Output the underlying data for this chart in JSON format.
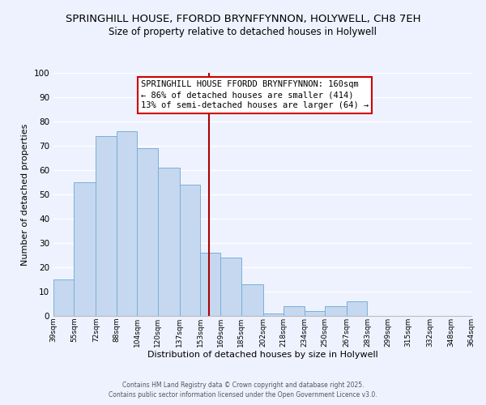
{
  "title": "SPRINGHILL HOUSE, FFORDD BRYNFFYNNON, HOLYWELL, CH8 7EH",
  "subtitle": "Size of property relative to detached houses in Holywell",
  "bar_left_edges": [
    39,
    55,
    72,
    88,
    104,
    120,
    137,
    153,
    169,
    185,
    202,
    218,
    234,
    250,
    267,
    283,
    299,
    315,
    332,
    348
  ],
  "bar_heights": [
    15,
    55,
    74,
    76,
    69,
    61,
    54,
    26,
    24,
    13,
    1,
    4,
    2,
    4,
    6,
    0,
    0,
    0,
    0,
    0
  ],
  "bar_color": "#c5d8f0",
  "bar_edge_color": "#7bafd4",
  "bin_widths": [
    16,
    17,
    16,
    16,
    16,
    17,
    16,
    16,
    16,
    17,
    16,
    16,
    16,
    17,
    16,
    16,
    16,
    17,
    16,
    16
  ],
  "xlabel": "Distribution of detached houses by size in Holywell",
  "ylabel": "Number of detached properties",
  "xlim": [
    39,
    364
  ],
  "ylim": [
    0,
    100
  ],
  "yticks": [
    0,
    10,
    20,
    30,
    40,
    50,
    60,
    70,
    80,
    90,
    100
  ],
  "xtick_labels": [
    "39sqm",
    "55sqm",
    "72sqm",
    "88sqm",
    "104sqm",
    "120sqm",
    "137sqm",
    "153sqm",
    "169sqm",
    "185sqm",
    "202sqm",
    "218sqm",
    "234sqm",
    "250sqm",
    "267sqm",
    "283sqm",
    "299sqm",
    "315sqm",
    "332sqm",
    "348sqm",
    "364sqm"
  ],
  "vline_x": 160,
  "vline_color": "#aa0000",
  "annotation_title": "SPRINGHILL HOUSE FFORDD BRYNFFYNNON: 160sqm",
  "annotation_line1": "← 86% of detached houses are smaller (414)",
  "annotation_line2": "13% of semi-detached houses are larger (64) →",
  "footer1": "Contains HM Land Registry data © Crown copyright and database right 2025.",
  "footer2": "Contains public sector information licensed under the Open Government Licence v3.0.",
  "background_color": "#eef2ff",
  "grid_color": "#ffffff",
  "title_fontsize": 9.5,
  "subtitle_fontsize": 8.5,
  "annotation_fontsize": 7.5
}
